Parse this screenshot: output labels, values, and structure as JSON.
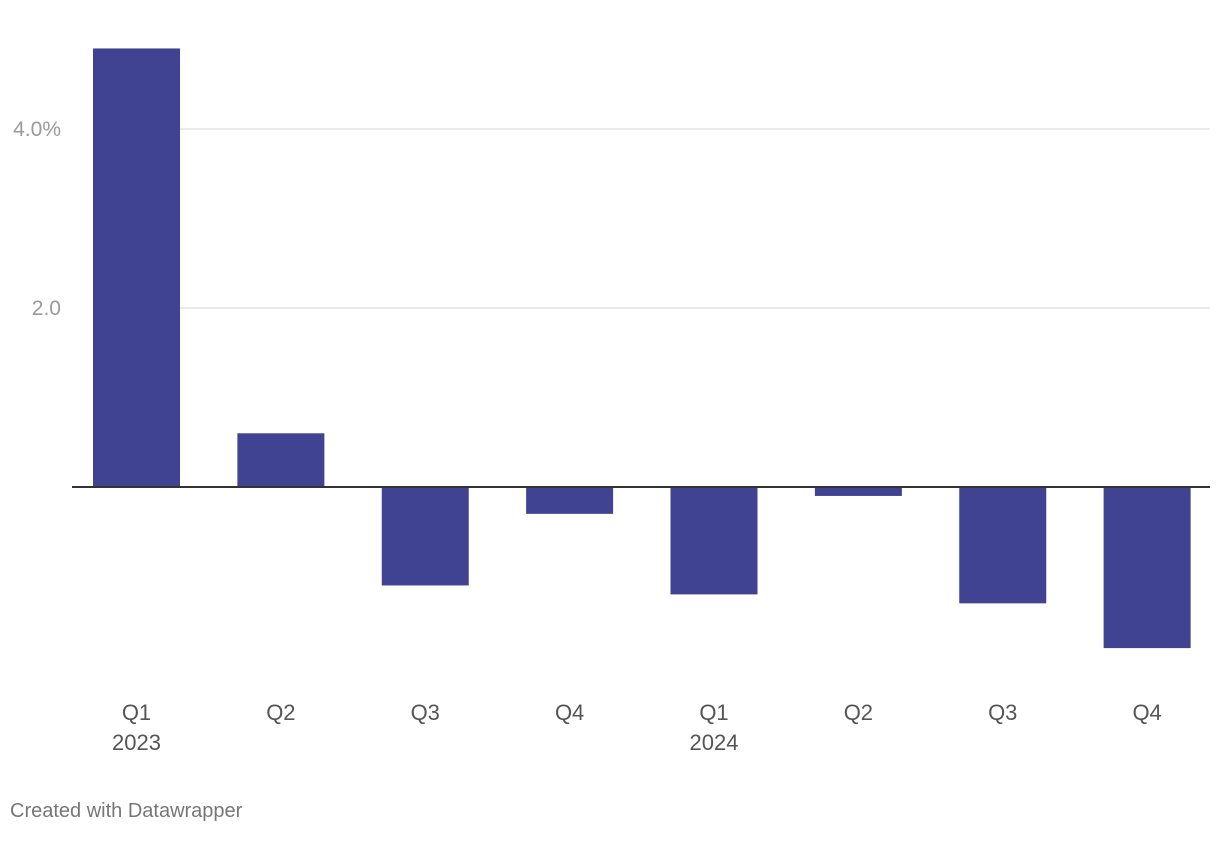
{
  "chart_data": {
    "type": "bar",
    "title": "",
    "xlabel": "",
    "ylabel": "",
    "categories": [
      {
        "quarter": "Q1",
        "year": "2023"
      },
      {
        "quarter": "Q2",
        "year": ""
      },
      {
        "quarter": "Q3",
        "year": ""
      },
      {
        "quarter": "Q4",
        "year": ""
      },
      {
        "quarter": "Q1",
        "year": "2024"
      },
      {
        "quarter": "Q2",
        "year": ""
      },
      {
        "quarter": "Q3",
        "year": ""
      },
      {
        "quarter": "Q4",
        "year": ""
      }
    ],
    "values": [
      4.9,
      0.6,
      -1.1,
      -0.3,
      -1.2,
      -0.1,
      -1.3,
      -1.8
    ],
    "ylim": [
      -2.2,
      5.1
    ],
    "y_ticks": [
      {
        "value": 4,
        "label": "4.0%"
      },
      {
        "value": 2,
        "label": "2.0"
      }
    ],
    "grid": true,
    "legend": "none",
    "colors": {
      "bar": "#404391",
      "gridline": "#e3e3e3",
      "baseline": "#333333"
    }
  },
  "footer": {
    "credit": "Created with Datawrapper"
  }
}
